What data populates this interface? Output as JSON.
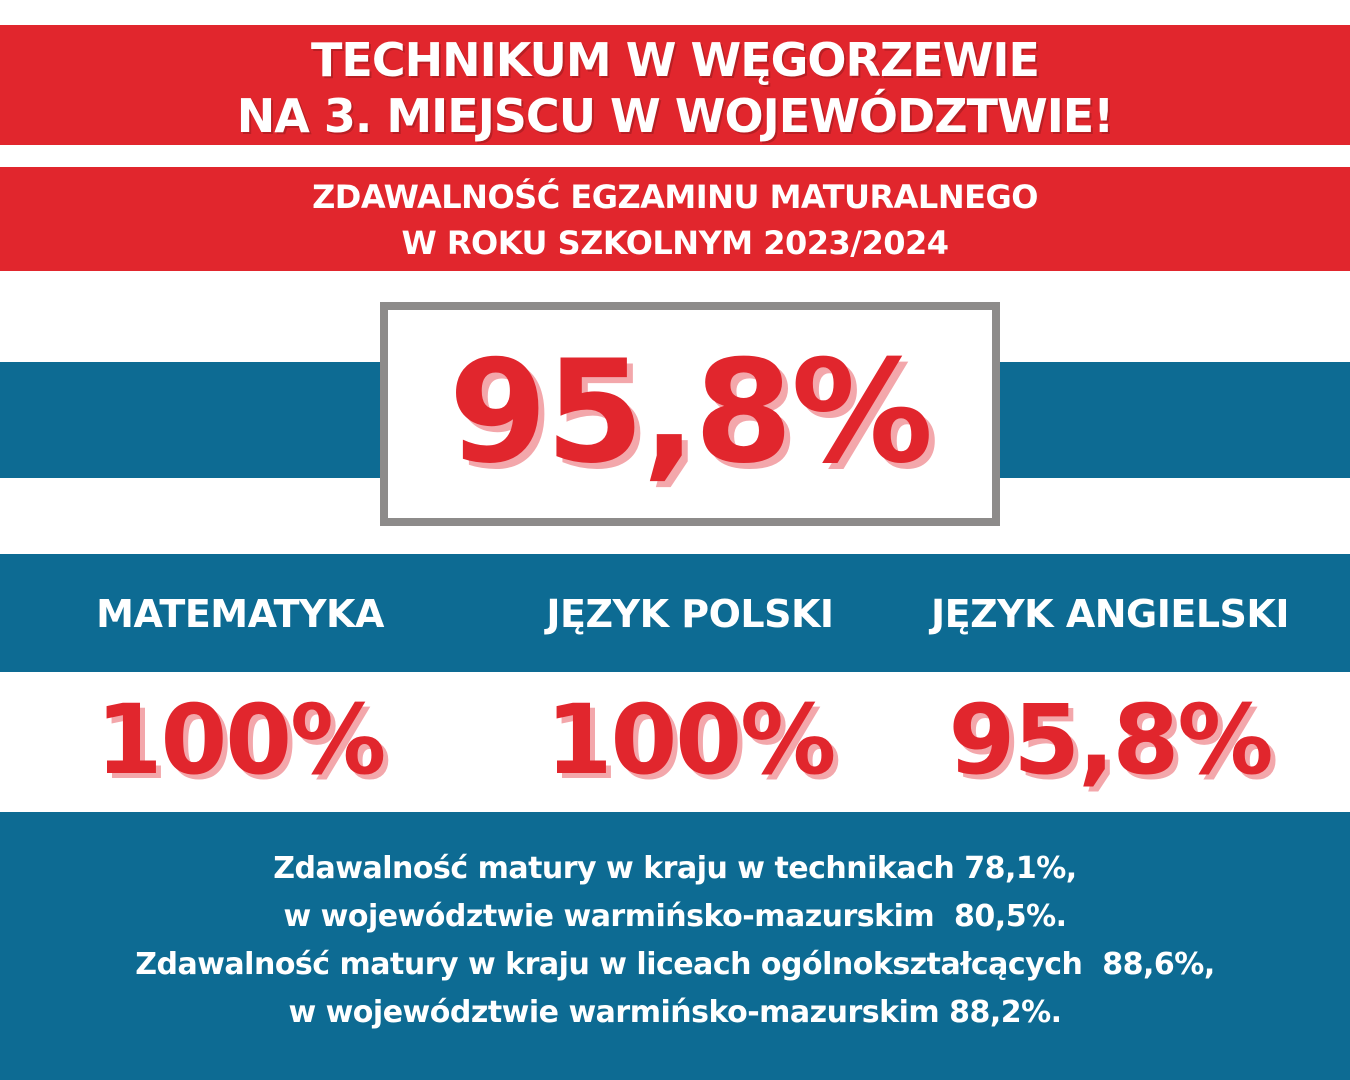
{
  "header": {
    "title_line1": "TECHNIKUM W WĘGORZEWIE",
    "title_line2": "NA 3. MIEJSCU W WOJEWÓDZTWIE!"
  },
  "subheader": {
    "line1": "ZDAWALNOŚĆ EGZAMINU MATURALNEGO",
    "line2": "W ROKU SZKOLNYM 2023/2024"
  },
  "main_result": "95,8%",
  "subjects": [
    {
      "name": "MATEMATYKA",
      "result": "100%"
    },
    {
      "name": "JĘZYK POLSKI",
      "result": "100%"
    },
    {
      "name": "JĘZYK  ANGIELSKI",
      "result": "95,8%"
    }
  ],
  "footer": {
    "line1": "Zdawalność matury w kraju w technikach 78,1%,",
    "line2": "w województwie warmińsko-mazurskim  80,5%.",
    "line3": "Zdawalność matury w kraju w liceach ogólnokształcących  88,6%,",
    "line4": "w województwie warmińsko-mazurskim 88,2%."
  },
  "colors": {
    "red": "#e1262d",
    "blue": "#0d6b93",
    "frame_gray": "#8d8b8a",
    "shadow_pink": "#f3a7ab"
  }
}
